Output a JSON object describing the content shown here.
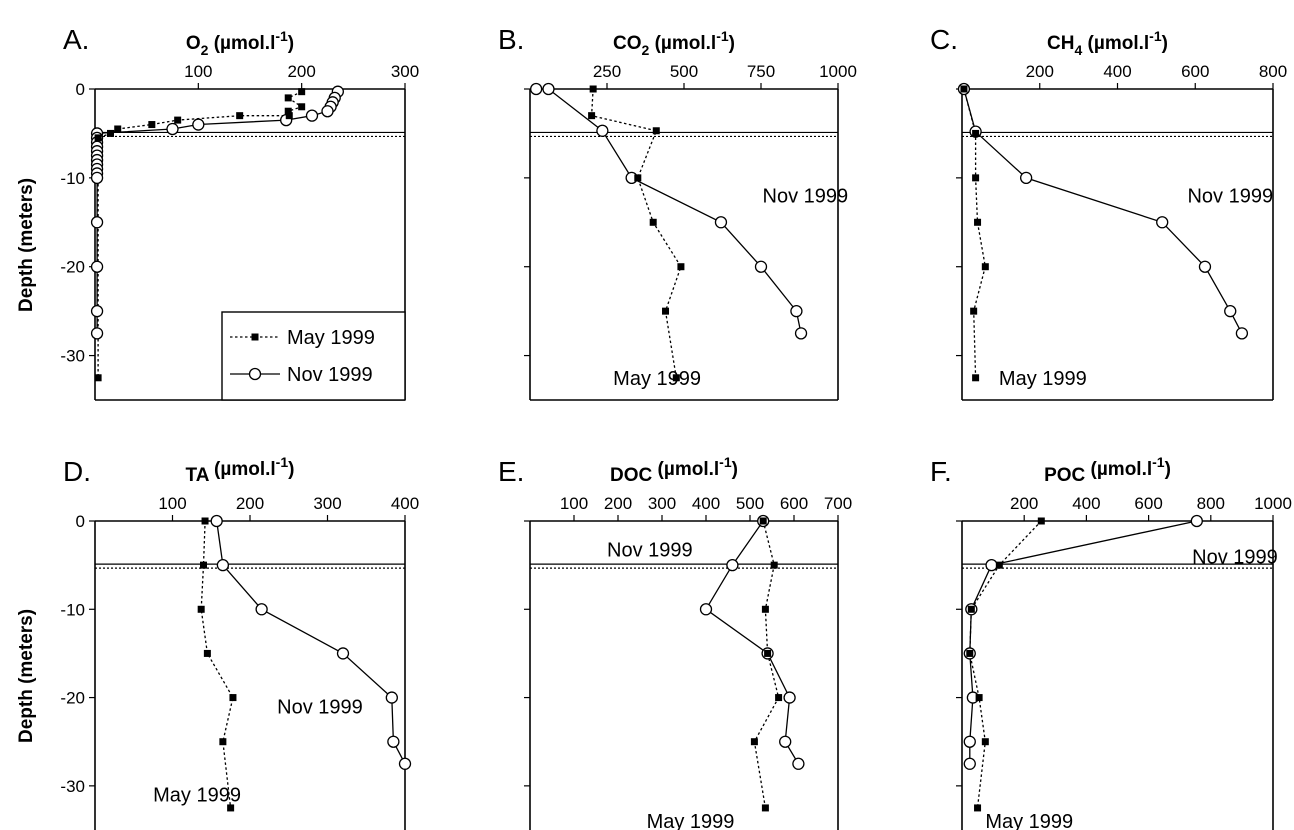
{
  "figure": {
    "ylabel": "Depth (meters)",
    "legend": {
      "may": "May 1999",
      "nov": "Nov 1999"
    }
  },
  "chart_data": [
    {
      "type": "line",
      "panel": "A.",
      "title_main": "O",
      "title_sub": "2",
      "title_unit": " (µmol.l",
      "title_sup": "-1",
      "title_close": ")",
      "xlim": [
        0,
        300
      ],
      "xticks": [
        100,
        200,
        300
      ],
      "ylim": [
        -35,
        0
      ],
      "yticks": [
        0,
        -10,
        -20,
        -30
      ],
      "ytick_labels": [
        "0",
        "-10",
        "-20",
        "-30"
      ],
      "legend_placement": "bottom-right",
      "annotations": [],
      "series": [
        {
          "name": "May 1999",
          "style": "may",
          "points": [
            [
              200,
              -0.3
            ],
            [
              187,
              -1
            ],
            [
              200,
              -2
            ],
            [
              187,
              -2.5
            ],
            [
              188,
              -3
            ],
            [
              140,
              -3
            ],
            [
              80,
              -3.5
            ],
            [
              55,
              -4
            ],
            [
              22,
              -4.5
            ],
            [
              15,
              -5
            ],
            [
              3,
              -5.5
            ],
            [
              3,
              -32.5
            ]
          ]
        },
        {
          "name": "Nov 1999",
          "style": "nov",
          "points": [
            [
              235,
              -0.3
            ],
            [
              232,
              -1
            ],
            [
              230,
              -1.5
            ],
            [
              228,
              -2
            ],
            [
              225,
              -2.5
            ],
            [
              210,
              -3
            ],
            [
              185,
              -3.5
            ],
            [
              100,
              -4
            ],
            [
              75,
              -4.5
            ],
            [
              2,
              -5
            ],
            [
              2,
              -5.5
            ],
            [
              2,
              -6
            ],
            [
              2,
              -6.5
            ],
            [
              2,
              -7
            ],
            [
              2,
              -7.5
            ],
            [
              2,
              -8
            ],
            [
              2,
              -8.5
            ],
            [
              2,
              -9
            ],
            [
              2,
              -9.5
            ],
            [
              2,
              -10
            ],
            [
              2,
              -15
            ],
            [
              2,
              -20
            ],
            [
              2,
              -25
            ],
            [
              2,
              -27.5
            ]
          ]
        }
      ]
    },
    {
      "type": "line",
      "panel": "B.",
      "title_main": "CO",
      "title_sub": "2",
      "title_unit": " (µmol.l",
      "title_sup": "-1",
      "title_close": ")",
      "xlim": [
        0,
        1000
      ],
      "xticks": [
        250,
        500,
        750,
        1000
      ],
      "ylim": [
        -35,
        0
      ],
      "yticks": [
        0,
        -10,
        -20,
        -30
      ],
      "ytick_labels": [
        "",
        "",
        "",
        ""
      ],
      "annotations": [
        {
          "text": "Nov 1999",
          "x": 755,
          "y": -12
        },
        {
          "text": "May 1999",
          "x": 270,
          "y": -32.5
        }
      ],
      "series": [
        {
          "name": "May 1999",
          "style": "may",
          "points": [
            [
              205,
              0
            ],
            [
              200,
              -3
            ],
            [
              410,
              -4.7
            ],
            [
              350,
              -10
            ],
            [
              400,
              -15
            ],
            [
              490,
              -20
            ],
            [
              440,
              -25
            ],
            [
              475,
              -32.5
            ]
          ]
        },
        {
          "name": "Nov 1999",
          "style": "nov",
          "points": [
            [
              20,
              0
            ],
            [
              60,
              0
            ],
            [
              235,
              -4.7
            ],
            [
              330,
              -10
            ],
            [
              620,
              -15
            ],
            [
              750,
              -20
            ],
            [
              865,
              -25
            ],
            [
              880,
              -27.5
            ]
          ]
        }
      ]
    },
    {
      "type": "line",
      "panel": "C.",
      "title_main": "CH",
      "title_sub": "4",
      "title_unit": " (µmol.l",
      "title_sup": "-1",
      "title_close": ")",
      "xlim": [
        0,
        800
      ],
      "xticks": [
        200,
        400,
        600,
        800
      ],
      "ylim": [
        -35,
        0
      ],
      "yticks": [
        0,
        -10,
        -20,
        -30
      ],
      "ytick_labels": [
        "",
        "",
        "",
        ""
      ],
      "annotations": [
        {
          "text": "Nov 1999",
          "x": 580,
          "y": -12
        },
        {
          "text": "May 1999",
          "x": 95,
          "y": -32.5
        }
      ],
      "series": [
        {
          "name": "May 1999",
          "style": "may",
          "points": [
            [
              5,
              0
            ],
            [
              35,
              -5
            ],
            [
              35,
              -10
            ],
            [
              40,
              -15
            ],
            [
              60,
              -20
            ],
            [
              30,
              -25
            ],
            [
              35,
              -32.5
            ]
          ]
        },
        {
          "name": "Nov 1999",
          "style": "nov",
          "points": [
            [
              5,
              0
            ],
            [
              35,
              -4.8
            ],
            [
              165,
              -10
            ],
            [
              515,
              -15
            ],
            [
              625,
              -20
            ],
            [
              690,
              -25
            ],
            [
              720,
              -27.5
            ]
          ]
        }
      ]
    },
    {
      "type": "line",
      "panel": "D.",
      "title_main": "TA",
      "title_sub": "",
      "title_unit": " (µmol.l",
      "title_sup": "-1",
      "title_close": ")",
      "xlim": [
        0,
        400
      ],
      "xticks": [
        100,
        200,
        300,
        400
      ],
      "ylim": [
        -35,
        0
      ],
      "yticks": [
        0,
        -10,
        -20,
        -30
      ],
      "ytick_labels": [
        "0",
        "-10",
        "-20",
        "-30"
      ],
      "annotations": [
        {
          "text": "Nov 1999",
          "x": 235,
          "y": -21
        },
        {
          "text": "May 1999",
          "x": 75,
          "y": -31
        }
      ],
      "series": [
        {
          "name": "May 1999",
          "style": "may",
          "points": [
            [
              142,
              0
            ],
            [
              140,
              -5
            ],
            [
              137,
              -10
            ],
            [
              145,
              -15
            ],
            [
              178,
              -20
            ],
            [
              165,
              -25
            ],
            [
              175,
              -32.5
            ]
          ]
        },
        {
          "name": "Nov 1999",
          "style": "nov",
          "points": [
            [
              157,
              0
            ],
            [
              165,
              -5
            ],
            [
              215,
              -10
            ],
            [
              320,
              -15
            ],
            [
              383,
              -20
            ],
            [
              385,
              -25
            ],
            [
              400,
              -27.5
            ]
          ]
        }
      ]
    },
    {
      "type": "line",
      "panel": "E.",
      "title_main": "DOC",
      "title_sub": "",
      "title_unit": " (µmol.l",
      "title_sup": "-1",
      "title_close": ")",
      "xlim": [
        0,
        700
      ],
      "xticks": [
        100,
        200,
        300,
        400,
        500,
        600,
        700
      ],
      "ylim": [
        -35,
        0
      ],
      "yticks": [
        0,
        -10,
        -20,
        -30
      ],
      "ytick_labels": [
        "",
        "",
        "",
        ""
      ],
      "annotations": [
        {
          "text": "Nov 1999",
          "x": 175,
          "y": -3.2
        },
        {
          "text": "May 1999",
          "x": 265,
          "y": -34
        }
      ],
      "series": [
        {
          "name": "May 1999",
          "style": "may",
          "points": [
            [
              530,
              0
            ],
            [
              555,
              -5
            ],
            [
              535,
              -10
            ],
            [
              540,
              -15
            ],
            [
              565,
              -20
            ],
            [
              510,
              -25
            ],
            [
              535,
              -32.5
            ]
          ]
        },
        {
          "name": "Nov 1999",
          "style": "nov",
          "points": [
            [
              530,
              0
            ],
            [
              460,
              -5
            ],
            [
              400,
              -10
            ],
            [
              540,
              -15
            ],
            [
              590,
              -20
            ],
            [
              580,
              -25
            ],
            [
              610,
              -27.5
            ]
          ]
        }
      ]
    },
    {
      "type": "line",
      "panel": "F.",
      "title_main": "POC",
      "title_sub": "",
      "title_unit": " (µmol.l",
      "title_sup": "-1",
      "title_close": ")",
      "xlim": [
        0,
        1000
      ],
      "xticks": [
        200,
        400,
        600,
        800,
        1000
      ],
      "ylim": [
        -35,
        0
      ],
      "yticks": [
        0,
        -10,
        -20,
        -30
      ],
      "ytick_labels": [
        "",
        "",
        "",
        ""
      ],
      "annotations": [
        {
          "text": "Nov 1999",
          "x": 740,
          "y": -4
        },
        {
          "text": "May 1999",
          "x": 75,
          "y": -34
        }
      ],
      "series": [
        {
          "name": "May 1999",
          "style": "may",
          "points": [
            [
              255,
              0
            ],
            [
              120,
              -5
            ],
            [
              30,
              -10
            ],
            [
              25,
              -15
            ],
            [
              55,
              -20
            ],
            [
              75,
              -25
            ],
            [
              50,
              -32.5
            ]
          ]
        },
        {
          "name": "Nov 1999",
          "style": "nov",
          "points": [
            [
              755,
              0
            ],
            [
              95,
              -5
            ],
            [
              30,
              -10
            ],
            [
              25,
              -15
            ],
            [
              35,
              -20
            ],
            [
              25,
              -25
            ],
            [
              25,
              -27.5
            ]
          ]
        }
      ]
    }
  ]
}
